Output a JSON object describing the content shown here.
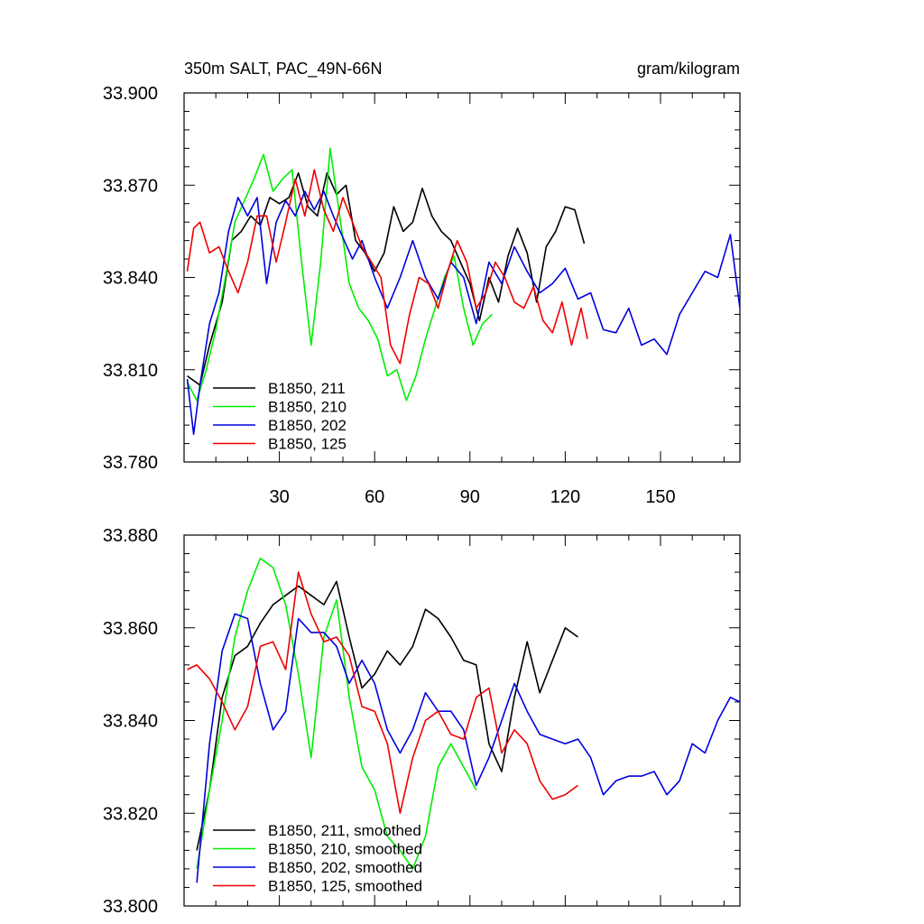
{
  "header": {
    "title_left": "350m SALT, PAC_49N-66N",
    "title_right": "gram/kilogram"
  },
  "chart_data": [
    {
      "type": "line",
      "title": "350m SALT, PAC_49N-66N",
      "units": "gram/kilogram",
      "xlim": [
        0,
        175
      ],
      "ylim": [
        33.78,
        33.9
      ],
      "x_ticks": [
        30,
        60,
        90,
        120,
        150
      ],
      "y_ticks": [
        "33.780",
        "33.810",
        "33.840",
        "33.870",
        "33.900"
      ],
      "legend_position": "bottom-left",
      "series": [
        {
          "name": "B1850, 211",
          "color": "#000000",
          "x": [
            1,
            5,
            8,
            12,
            15,
            18,
            21,
            24,
            27,
            30,
            33,
            36,
            39,
            42,
            45,
            48,
            51,
            54,
            57,
            60,
            63,
            66,
            69,
            72,
            75,
            78,
            81,
            84,
            87,
            90,
            93,
            96,
            99,
            102,
            105,
            108,
            111,
            114,
            117,
            120,
            123,
            126
          ],
          "values": [
            33.808,
            33.805,
            33.818,
            33.832,
            33.852,
            33.855,
            33.86,
            33.857,
            33.866,
            33.864,
            33.866,
            33.874,
            33.863,
            33.86,
            33.874,
            33.867,
            33.87,
            33.852,
            33.848,
            33.842,
            33.848,
            33.863,
            33.855,
            33.858,
            33.869,
            33.86,
            33.855,
            33.852,
            33.845,
            33.838,
            33.826,
            33.84,
            33.832,
            33.847,
            33.856,
            33.848,
            33.832,
            33.85,
            33.855,
            33.863,
            33.862,
            33.851
          ]
        },
        {
          "name": "B1850, 210",
          "color": "#00ee00",
          "x": [
            1,
            4,
            7,
            10,
            13,
            16,
            19,
            22,
            25,
            28,
            31,
            34,
            37,
            40,
            43,
            46,
            49,
            52,
            55,
            58,
            61,
            64,
            67,
            70,
            73,
            76,
            79,
            82,
            85,
            88,
            91,
            94,
            97
          ],
          "values": [
            33.806,
            33.8,
            33.81,
            33.823,
            33.84,
            33.858,
            33.865,
            33.872,
            33.88,
            33.868,
            33.872,
            33.875,
            33.845,
            33.818,
            33.845,
            33.882,
            33.86,
            33.838,
            33.83,
            33.826,
            33.82,
            33.808,
            33.81,
            33.8,
            33.808,
            33.82,
            33.83,
            33.84,
            33.847,
            33.83,
            33.818,
            33.825,
            33.828
          ]
        },
        {
          "name": "B1850, 202",
          "color": "#0000dd",
          "x": [
            1,
            3,
            5,
            8,
            11,
            14,
            17,
            20,
            23,
            26,
            29,
            32,
            35,
            38,
            41,
            44,
            47,
            50,
            53,
            56,
            60,
            64,
            68,
            72,
            76,
            80,
            84,
            88,
            92,
            96,
            100,
            104,
            108,
            112,
            116,
            120,
            124,
            128,
            132,
            136,
            140,
            144,
            148,
            152,
            156,
            160,
            164,
            168,
            172,
            175
          ],
          "values": [
            33.807,
            33.789,
            33.805,
            33.825,
            33.835,
            33.855,
            33.866,
            33.86,
            33.866,
            33.838,
            33.858,
            33.865,
            33.86,
            33.868,
            33.862,
            33.868,
            33.86,
            33.853,
            33.846,
            33.852,
            33.84,
            33.83,
            33.84,
            33.852,
            33.84,
            33.833,
            33.845,
            33.84,
            33.825,
            33.845,
            33.838,
            33.85,
            33.842,
            33.835,
            33.838,
            33.843,
            33.833,
            33.835,
            33.823,
            33.822,
            33.83,
            33.818,
            33.82,
            33.815,
            33.828,
            33.835,
            33.842,
            33.84,
            33.854,
            33.83
          ]
        },
        {
          "name": "B1850, 125",
          "color": "#ee0000",
          "x": [
            1,
            3,
            5,
            8,
            11,
            14,
            17,
            20,
            23,
            26,
            29,
            32,
            35,
            38,
            41,
            44,
            47,
            50,
            53,
            56,
            59,
            62,
            65,
            68,
            71,
            74,
            77,
            80,
            83,
            86,
            89,
            92,
            95,
            98,
            101,
            104,
            107,
            110,
            113,
            116,
            119,
            122,
            125,
            127
          ],
          "values": [
            33.842,
            33.856,
            33.858,
            33.848,
            33.85,
            33.842,
            33.835,
            33.845,
            33.86,
            33.86,
            33.845,
            33.858,
            33.872,
            33.86,
            33.875,
            33.862,
            33.855,
            33.866,
            33.858,
            33.85,
            33.845,
            33.84,
            33.818,
            33.812,
            33.828,
            33.84,
            33.838,
            33.83,
            33.842,
            33.852,
            33.845,
            33.83,
            33.835,
            33.845,
            33.84,
            33.832,
            33.83,
            33.837,
            33.826,
            33.822,
            33.832,
            33.818,
            33.83,
            33.82
          ]
        }
      ]
    },
    {
      "type": "line",
      "xlim": [
        0,
        175
      ],
      "ylim": [
        33.8,
        33.88
      ],
      "y_ticks": [
        "33.800",
        "33.820",
        "33.840",
        "33.860",
        "33.880"
      ],
      "legend_position": "bottom-left",
      "series": [
        {
          "name": "B1850, 211, smoothed",
          "color": "#000000",
          "x": [
            4,
            8,
            12,
            16,
            20,
            24,
            28,
            32,
            36,
            40,
            44,
            48,
            52,
            56,
            60,
            64,
            68,
            72,
            76,
            80,
            84,
            88,
            92,
            96,
            100,
            104,
            108,
            112,
            116,
            120,
            124
          ],
          "values": [
            33.812,
            33.825,
            33.845,
            33.854,
            33.856,
            33.861,
            33.865,
            33.867,
            33.869,
            33.867,
            33.865,
            33.87,
            33.858,
            33.847,
            33.85,
            33.855,
            33.852,
            33.856,
            33.864,
            33.862,
            33.858,
            33.853,
            33.852,
            33.835,
            33.829,
            33.845,
            33.857,
            33.846,
            33.853,
            33.86,
            33.858
          ]
        },
        {
          "name": "B1850, 210, smoothed",
          "color": "#00ee00",
          "x": [
            4,
            8,
            12,
            16,
            20,
            24,
            28,
            32,
            36,
            40,
            44,
            48,
            52,
            56,
            60,
            64,
            68,
            72,
            76,
            80,
            84,
            88,
            92
          ],
          "values": [
            33.808,
            33.825,
            33.84,
            33.858,
            33.868,
            33.875,
            33.873,
            33.865,
            33.85,
            33.832,
            33.858,
            33.866,
            33.845,
            33.83,
            33.825,
            33.815,
            33.812,
            33.808,
            33.815,
            33.83,
            33.835,
            33.83,
            33.825
          ]
        },
        {
          "name": "B1850, 202, smoothed",
          "color": "#0000dd",
          "x": [
            4,
            8,
            12,
            16,
            20,
            24,
            28,
            32,
            36,
            40,
            44,
            48,
            52,
            56,
            60,
            64,
            68,
            72,
            76,
            80,
            84,
            88,
            92,
            96,
            100,
            104,
            108,
            112,
            116,
            120,
            124,
            128,
            132,
            136,
            140,
            144,
            148,
            152,
            156,
            160,
            164,
            168,
            172,
            175
          ],
          "values": [
            33.805,
            33.835,
            33.855,
            33.863,
            33.862,
            33.848,
            33.838,
            33.842,
            33.862,
            33.859,
            33.859,
            33.856,
            33.848,
            33.853,
            33.848,
            33.838,
            33.833,
            33.838,
            33.846,
            33.842,
            33.842,
            33.838,
            33.826,
            33.832,
            33.84,
            33.848,
            33.842,
            33.837,
            33.836,
            33.835,
            33.836,
            33.832,
            33.824,
            33.827,
            33.828,
            33.828,
            33.829,
            33.824,
            33.827,
            33.835,
            33.833,
            33.84,
            33.845,
            33.844
          ]
        },
        {
          "name": "B1850, 125, smoothed",
          "color": "#ee0000",
          "x": [
            1,
            4,
            8,
            12,
            16,
            20,
            24,
            28,
            32,
            36,
            40,
            44,
            48,
            52,
            56,
            60,
            64,
            68,
            72,
            76,
            80,
            84,
            88,
            92,
            96,
            100,
            104,
            108,
            112,
            116,
            120,
            124
          ],
          "values": [
            33.851,
            33.852,
            33.849,
            33.844,
            33.838,
            33.843,
            33.856,
            33.857,
            33.851,
            33.872,
            33.863,
            33.857,
            33.858,
            33.854,
            33.843,
            33.842,
            33.835,
            33.82,
            33.832,
            33.84,
            33.842,
            33.837,
            33.836,
            33.845,
            33.847,
            33.833,
            33.838,
            33.835,
            33.827,
            33.823,
            33.824,
            33.826
          ]
        }
      ]
    }
  ]
}
